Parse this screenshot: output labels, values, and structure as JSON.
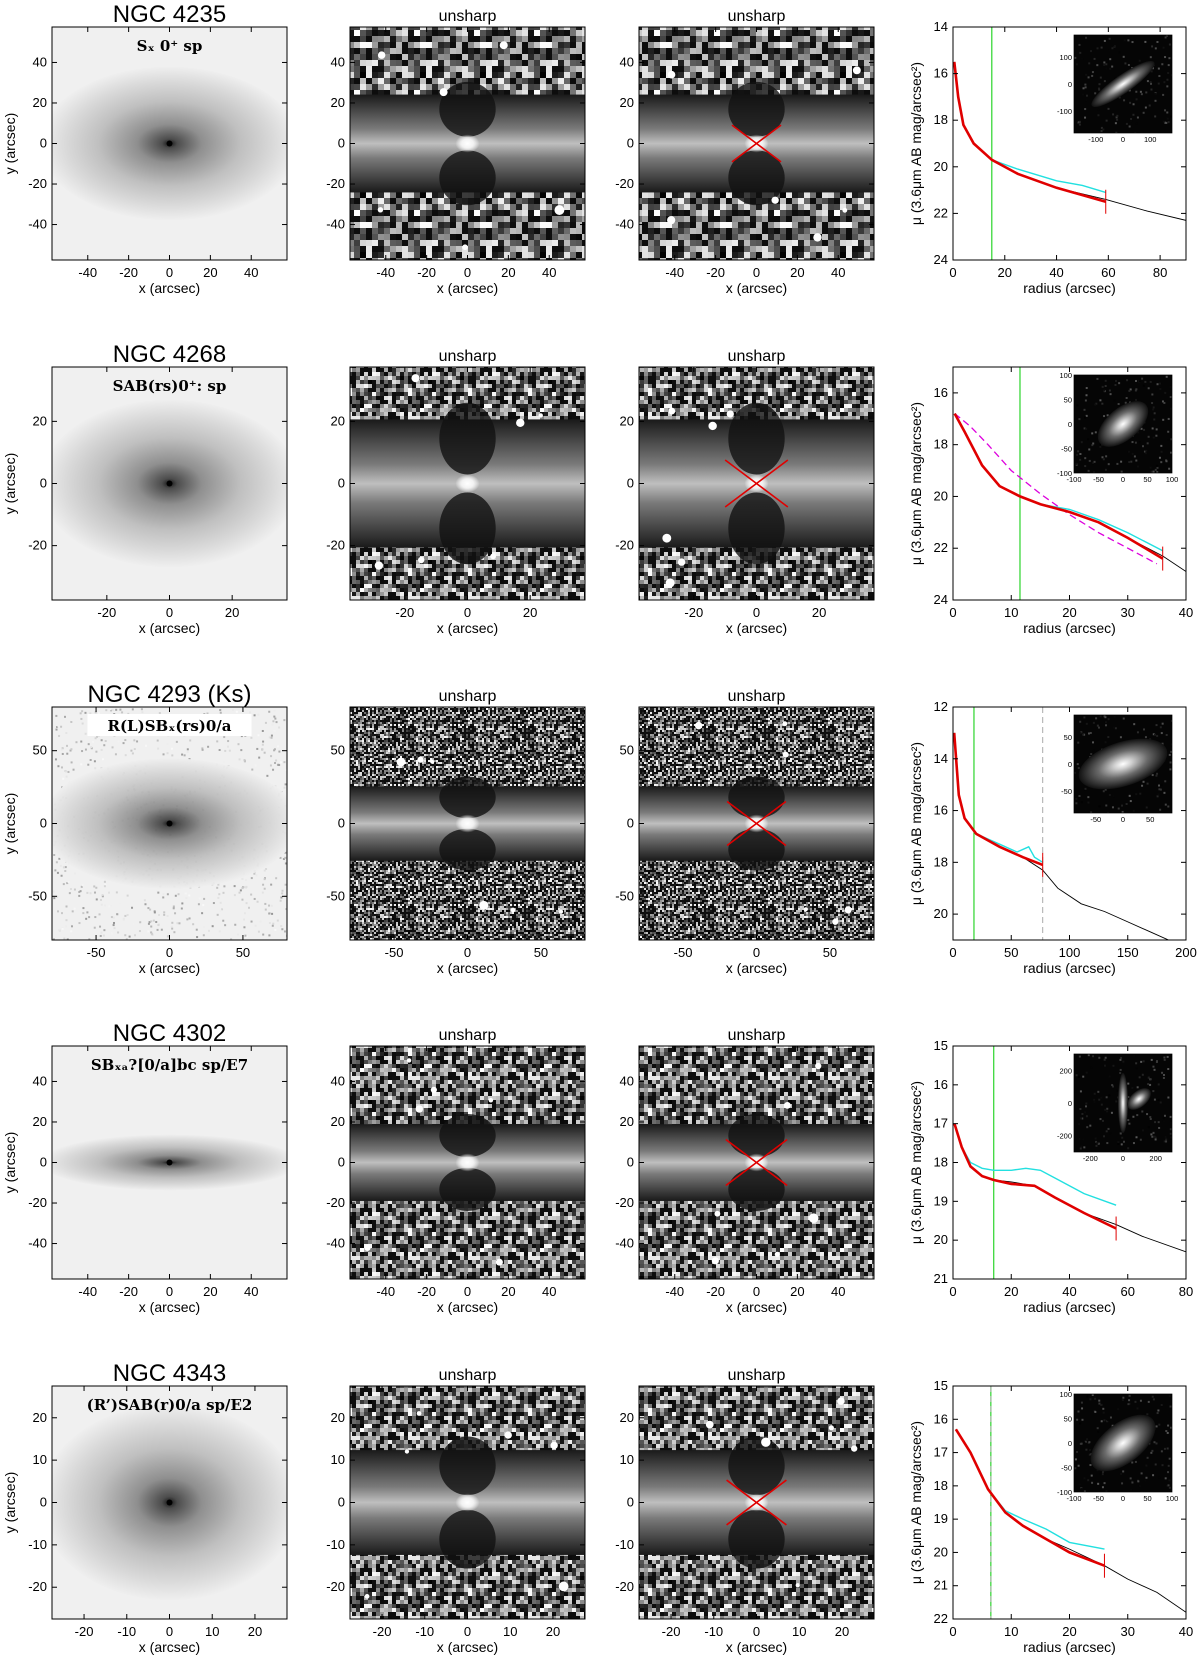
{
  "rows": [
    {
      "galaxy": "NGC 4235",
      "classification": "Sₓ 0⁺ sp",
      "image_range": 57.5,
      "image_ticks": [
        -40,
        -20,
        0,
        20,
        40
      ],
      "unsharp_title": "unsharp",
      "image_xlabel": "x (arcsec)",
      "image_ylabel": "y (arcsec)",
      "profile": {
        "xlim": [
          0,
          90
        ],
        "xticks": [
          0,
          20,
          40,
          60,
          80
        ],
        "ylim": [
          24,
          14
        ],
        "yticks": [
          14,
          16,
          18,
          20,
          22,
          24
        ],
        "green_line": 15,
        "red_mark": 59,
        "dashed_line": null,
        "inset_ticks": [
          -100,
          0,
          100
        ],
        "inset_range": 180,
        "black": [
          [
            0.5,
            15.5
          ],
          [
            2,
            17
          ],
          [
            4,
            18.2
          ],
          [
            8,
            19
          ],
          [
            15,
            19.7
          ],
          [
            25,
            20.3
          ],
          [
            40,
            20.9
          ],
          [
            59,
            21.4
          ],
          [
            75,
            21.9
          ],
          [
            90,
            22.3
          ]
        ],
        "cyan": [
          [
            0.5,
            15.5
          ],
          [
            2,
            17
          ],
          [
            4,
            18.2
          ],
          [
            8,
            19
          ],
          [
            15,
            19.7
          ],
          [
            25,
            20.1
          ],
          [
            40,
            20.6
          ],
          [
            50,
            20.8
          ],
          [
            59,
            21.1
          ]
        ],
        "red": [
          [
            0.5,
            15.5
          ],
          [
            2,
            17
          ],
          [
            4,
            18.2
          ],
          [
            8,
            19
          ],
          [
            15,
            19.7
          ],
          [
            25,
            20.3
          ],
          [
            40,
            20.9
          ],
          [
            59,
            21.5
          ]
        ],
        "magenta": []
      },
      "x_cross_size": 12
    },
    {
      "galaxy": "NGC 4268",
      "classification": "SAB(rs)0⁺: sp",
      "image_range": 37.5,
      "image_ticks": [
        -20,
        0,
        20
      ],
      "unsharp_title": "unsharp",
      "image_xlabel": "x (arcsec)",
      "image_ylabel": "y (arcsec)",
      "profile": {
        "xlim": [
          0,
          40
        ],
        "xticks": [
          0,
          10,
          20,
          30,
          40
        ],
        "ylim": [
          24,
          15
        ],
        "yticks": [
          16,
          18,
          20,
          22,
          24
        ],
        "green_line": 11.5,
        "red_mark": 36,
        "dashed_line": null,
        "inset_ticks": [
          -100,
          -50,
          0,
          50,
          100
        ],
        "inset_range": 100,
        "black": [
          [
            0.3,
            16.8
          ],
          [
            2,
            17.5
          ],
          [
            5,
            18.8
          ],
          [
            8,
            19.6
          ],
          [
            11.5,
            20.0
          ],
          [
            15,
            20.3
          ],
          [
            20,
            20.6
          ],
          [
            25,
            21.0
          ],
          [
            30,
            21.6
          ],
          [
            36,
            22.3
          ],
          [
            40,
            22.9
          ]
        ],
        "cyan": [
          [
            0.3,
            16.8
          ],
          [
            2,
            17.5
          ],
          [
            5,
            18.8
          ],
          [
            8,
            19.6
          ],
          [
            11.5,
            20.0
          ],
          [
            15,
            20.3
          ],
          [
            20,
            20.5
          ],
          [
            25,
            20.9
          ],
          [
            30,
            21.4
          ],
          [
            36,
            22.1
          ]
        ],
        "red": [
          [
            0.3,
            16.8
          ],
          [
            2,
            17.5
          ],
          [
            5,
            18.8
          ],
          [
            8,
            19.6
          ],
          [
            11.5,
            20.0
          ],
          [
            15,
            20.3
          ],
          [
            20,
            20.6
          ],
          [
            25,
            21.0
          ],
          [
            30,
            21.6
          ],
          [
            36,
            22.4
          ]
        ],
        "magenta": [
          [
            0.3,
            16.8
          ],
          [
            3,
            17.3
          ],
          [
            6,
            18.0
          ],
          [
            10,
            19.0
          ],
          [
            15,
            19.9
          ],
          [
            20,
            20.7
          ],
          [
            25,
            21.4
          ],
          [
            30,
            22.0
          ],
          [
            35,
            22.6
          ]
        ]
      },
      "x_cross_size": 10
    },
    {
      "galaxy": "NGC 4293   (Ks)",
      "classification": "R(L)SBₓ(rs)0/a",
      "image_range": 80,
      "image_ticks": [
        -50,
        0,
        50
      ],
      "unsharp_title": "unsharp",
      "image_xlabel": "x (arcsec)",
      "image_ylabel": "y (arcsec)",
      "profile": {
        "xlim": [
          0,
          200
        ],
        "xticks": [
          0,
          50,
          100,
          150,
          200
        ],
        "ylim": [
          21,
          12
        ],
        "yticks": [
          12,
          14,
          16,
          18,
          20
        ],
        "green_line": 18,
        "red_mark": 77,
        "dashed_line": 77,
        "inset_ticks": [
          -50,
          0,
          50
        ],
        "inset_range": 90,
        "black": [
          [
            1,
            13
          ],
          [
            5,
            15.4
          ],
          [
            10,
            16.3
          ],
          [
            20,
            16.9
          ],
          [
            40,
            17.4
          ],
          [
            60,
            17.8
          ],
          [
            77,
            18.3
          ],
          [
            90,
            19.0
          ],
          [
            110,
            19.6
          ],
          [
            130,
            19.9
          ],
          [
            150,
            20.3
          ],
          [
            170,
            20.7
          ],
          [
            190,
            21.1
          ]
        ],
        "cyan": [
          [
            1,
            13
          ],
          [
            5,
            15.4
          ],
          [
            10,
            16.3
          ],
          [
            20,
            16.9
          ],
          [
            40,
            17.3
          ],
          [
            55,
            17.6
          ],
          [
            65,
            17.4
          ],
          [
            70,
            17.8
          ],
          [
            77,
            18.0
          ]
        ],
        "red": [
          [
            1,
            13
          ],
          [
            5,
            15.4
          ],
          [
            10,
            16.3
          ],
          [
            20,
            16.9
          ],
          [
            40,
            17.4
          ],
          [
            60,
            17.8
          ],
          [
            77,
            18.1
          ]
        ],
        "magenta": []
      },
      "x_cross_size": 20
    },
    {
      "galaxy": "NGC 4302",
      "classification": "SBₓₐ?[0/a]bc sp/E7",
      "image_range": 57.5,
      "image_ticks": [
        -40,
        -20,
        0,
        20,
        40
      ],
      "unsharp_title": "unsharp",
      "image_xlabel": "x (arcsec)",
      "image_ylabel": "y (arcsec)",
      "profile": {
        "xlim": [
          0,
          80
        ],
        "xticks": [
          0,
          20,
          40,
          60,
          80
        ],
        "ylim": [
          21,
          15
        ],
        "yticks": [
          15,
          16,
          17,
          18,
          19,
          20,
          21
        ],
        "green_line": 14,
        "red_mark": 56,
        "dashed_line": null,
        "inset_ticks": [
          -200,
          0,
          200
        ],
        "inset_range": 300,
        "black": [
          [
            0.5,
            17
          ],
          [
            3,
            17.6
          ],
          [
            6,
            18.1
          ],
          [
            10,
            18.35
          ],
          [
            14,
            18.45
          ],
          [
            20,
            18.5
          ],
          [
            28,
            18.6
          ],
          [
            35,
            18.9
          ],
          [
            45,
            19.3
          ],
          [
            56,
            19.6
          ],
          [
            65,
            19.9
          ],
          [
            80,
            20.3
          ]
        ],
        "cyan": [
          [
            0.5,
            17
          ],
          [
            3,
            17.6
          ],
          [
            6,
            18.0
          ],
          [
            10,
            18.15
          ],
          [
            14,
            18.2
          ],
          [
            20,
            18.2
          ],
          [
            25,
            18.15
          ],
          [
            30,
            18.2
          ],
          [
            35,
            18.4
          ],
          [
            45,
            18.8
          ],
          [
            56,
            19.1
          ]
        ],
        "red": [
          [
            0.5,
            17
          ],
          [
            3,
            17.6
          ],
          [
            6,
            18.1
          ],
          [
            10,
            18.35
          ],
          [
            14,
            18.45
          ],
          [
            20,
            18.55
          ],
          [
            28,
            18.6
          ],
          [
            35,
            18.9
          ],
          [
            45,
            19.3
          ],
          [
            56,
            19.7
          ]
        ],
        "magenta": []
      },
      "x_cross_size": 15
    },
    {
      "galaxy": "NGC 4343",
      "classification": "(R’)SAB(r)0/a sp/E2",
      "image_range": 27.5,
      "image_ticks": [
        -20,
        -10,
        0,
        10,
        20
      ],
      "unsharp_title": "unsharp",
      "image_xlabel": "x (arcsec)",
      "image_ylabel": "y (arcsec)",
      "profile": {
        "xlim": [
          0,
          40
        ],
        "xticks": [
          0,
          10,
          20,
          30,
          40
        ],
        "ylim": [
          22,
          15
        ],
        "yticks": [
          15,
          16,
          17,
          18,
          19,
          20,
          21,
          22
        ],
        "green_line": 6.5,
        "red_mark": 26,
        "dashed_line": 6.5,
        "inset_ticks": [
          -100,
          -50,
          0,
          50,
          100
        ],
        "inset_range": 100,
        "black": [
          [
            0.5,
            16.3
          ],
          [
            3,
            17.0
          ],
          [
            6,
            18.1
          ],
          [
            9,
            18.8
          ],
          [
            12,
            19.2
          ],
          [
            16,
            19.6
          ],
          [
            20,
            19.9
          ],
          [
            26,
            20.4
          ],
          [
            30,
            20.8
          ],
          [
            35,
            21.2
          ],
          [
            40,
            21.8
          ]
        ],
        "cyan": [
          [
            0.5,
            16.3
          ],
          [
            3,
            17.0
          ],
          [
            6,
            18.1
          ],
          [
            9,
            18.75
          ],
          [
            12,
            19.0
          ],
          [
            16,
            19.3
          ],
          [
            20,
            19.7
          ],
          [
            26,
            19.9
          ]
        ],
        "red": [
          [
            0.5,
            16.3
          ],
          [
            3,
            17.0
          ],
          [
            6,
            18.1
          ],
          [
            9,
            18.8
          ],
          [
            12,
            19.2
          ],
          [
            16,
            19.6
          ],
          [
            20,
            20.0
          ],
          [
            26,
            20.4
          ]
        ],
        "magenta": []
      },
      "x_cross_size": 7
    }
  ],
  "profile_xlabel": "radius (arcsec)",
  "profile_ylabel": "μ (3.6μm AB mag/arcsec²)",
  "colors": {
    "red": "#e00000",
    "cyan": "#22e0e0",
    "green": "#00cc00",
    "magenta": "#dd00dd",
    "gray_dashed": "#aaaaaa"
  }
}
